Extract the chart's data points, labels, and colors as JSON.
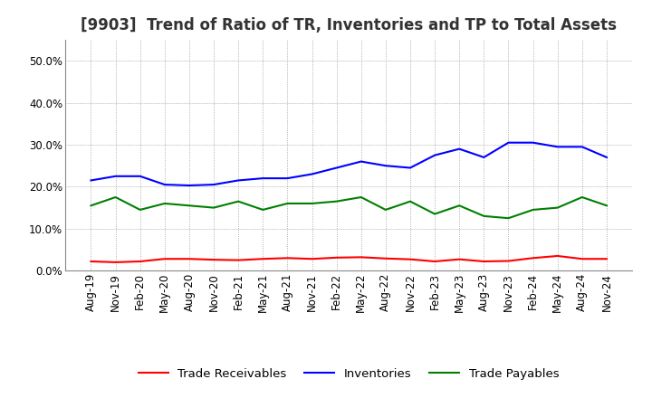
{
  "title": "[9903]  Trend of Ratio of TR, Inventories and TP to Total Assets",
  "x_labels": [
    "Aug-19",
    "Nov-19",
    "Feb-20",
    "May-20",
    "Aug-20",
    "Nov-20",
    "Feb-21",
    "May-21",
    "Aug-21",
    "Nov-21",
    "Feb-22",
    "May-22",
    "Aug-22",
    "Nov-22",
    "Feb-23",
    "May-23",
    "Aug-23",
    "Nov-23",
    "Feb-24",
    "May-24",
    "Aug-24",
    "Nov-24"
  ],
  "trade_receivables": [
    2.2,
    2.0,
    2.2,
    2.8,
    2.8,
    2.6,
    2.5,
    2.8,
    3.0,
    2.8,
    3.1,
    3.2,
    2.9,
    2.7,
    2.2,
    2.7,
    2.2,
    2.3,
    3.0,
    3.5,
    2.8,
    2.8
  ],
  "inventories": [
    21.5,
    22.5,
    22.5,
    20.5,
    20.3,
    20.5,
    21.5,
    22.0,
    22.0,
    23.0,
    24.5,
    26.0,
    25.0,
    24.5,
    27.5,
    29.0,
    27.0,
    30.5,
    30.5,
    29.5,
    29.5,
    27.0
  ],
  "trade_payables": [
    15.5,
    17.5,
    14.5,
    16.0,
    15.5,
    15.0,
    16.5,
    14.5,
    16.0,
    16.0,
    16.5,
    17.5,
    14.5,
    16.5,
    13.5,
    15.5,
    13.0,
    12.5,
    14.5,
    15.0,
    17.5,
    15.5
  ],
  "ylim": [
    0,
    55
  ],
  "yticks": [
    0.0,
    10.0,
    20.0,
    30.0,
    40.0,
    50.0
  ],
  "colors": {
    "trade_receivables": "#FF0000",
    "inventories": "#0000FF",
    "trade_payables": "#008000"
  },
  "legend_labels": [
    "Trade Receivables",
    "Inventories",
    "Trade Payables"
  ],
  "background_color": "#FFFFFF",
  "grid_color": "#999999",
  "title_fontsize": 12,
  "axis_fontsize": 8.5,
  "legend_fontsize": 9.5
}
